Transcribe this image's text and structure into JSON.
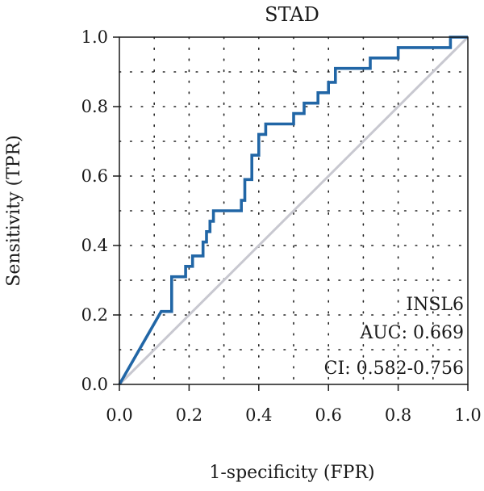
{
  "chart_data": {
    "type": "line",
    "title": "STAD",
    "xlabel": "1-specificity (FPR)",
    "ylabel": "Sensitivity (TPR)",
    "xlim": [
      0,
      1
    ],
    "ylim": [
      0,
      1
    ],
    "xticks": [
      "0.0",
      "0.2",
      "0.4",
      "0.6",
      "0.8",
      "1.0"
    ],
    "yticks": [
      "0.0",
      "0.2",
      "0.4",
      "0.6",
      "0.8",
      "1.0"
    ],
    "grid": true,
    "annotations": [
      "INSL6",
      "AUC: 0.669",
      "CI: 0.582-0.756"
    ],
    "colors": {
      "roc": "#2166a6",
      "diagonal": "#c8c8d0"
    },
    "series": [
      {
        "values": [
          [
            0,
            0
          ],
          [
            0.12,
            0.21
          ],
          [
            0.15,
            0.21
          ],
          [
            0.15,
            0.31
          ],
          [
            0.19,
            0.31
          ],
          [
            0.19,
            0.34
          ],
          [
            0.21,
            0.34
          ],
          [
            0.21,
            0.37
          ],
          [
            0.24,
            0.37
          ],
          [
            0.24,
            0.41
          ],
          [
            0.25,
            0.41
          ],
          [
            0.25,
            0.44
          ],
          [
            0.26,
            0.44
          ],
          [
            0.26,
            0.47
          ],
          [
            0.27,
            0.47
          ],
          [
            0.27,
            0.5
          ],
          [
            0.35,
            0.5
          ],
          [
            0.35,
            0.53
          ],
          [
            0.36,
            0.53
          ],
          [
            0.36,
            0.59
          ],
          [
            0.38,
            0.59
          ],
          [
            0.38,
            0.66
          ],
          [
            0.4,
            0.66
          ],
          [
            0.4,
            0.72
          ],
          [
            0.42,
            0.72
          ],
          [
            0.42,
            0.75
          ],
          [
            0.5,
            0.75
          ],
          [
            0.5,
            0.78
          ],
          [
            0.53,
            0.78
          ],
          [
            0.53,
            0.81
          ],
          [
            0.57,
            0.81
          ],
          [
            0.57,
            0.84
          ],
          [
            0.6,
            0.84
          ],
          [
            0.6,
            0.87
          ],
          [
            0.62,
            0.87
          ],
          [
            0.62,
            0.91
          ],
          [
            0.72,
            0.91
          ],
          [
            0.72,
            0.94
          ],
          [
            0.8,
            0.94
          ],
          [
            0.8,
            0.97
          ],
          [
            0.95,
            0.97
          ],
          [
            0.95,
            1.0
          ],
          [
            1.0,
            1.0
          ]
        ]
      },
      {
        "values": [
          [
            0,
            0
          ],
          [
            1,
            1
          ]
        ]
      }
    ]
  }
}
